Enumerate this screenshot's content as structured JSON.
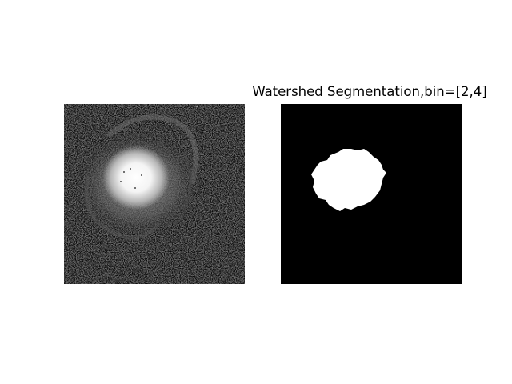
{
  "figure": {
    "left_image": {
      "title": "",
      "description_icon": "grayscale-image"
    },
    "right_image": {
      "title": "Watershed Segmentation,bin=[2,4]",
      "description_icon": "binary-mask-image"
    }
  }
}
